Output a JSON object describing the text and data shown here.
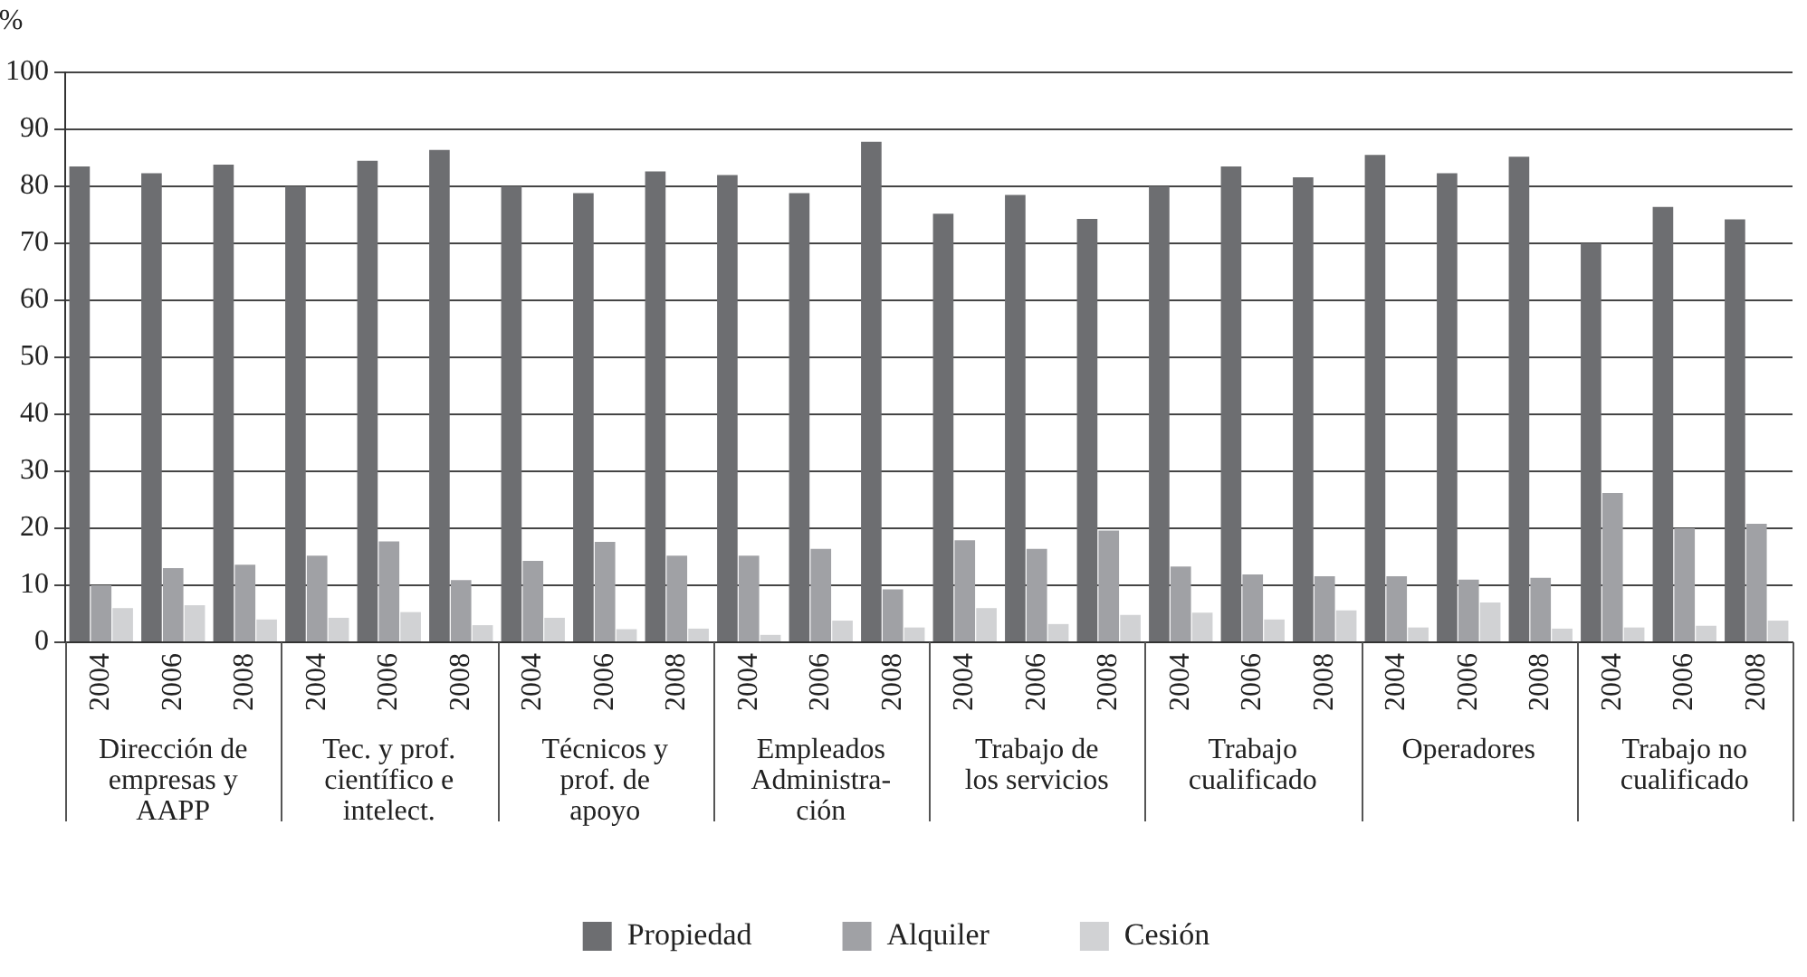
{
  "chart_data": {
    "type": "bar",
    "ylabel": "%",
    "categories": [
      "2004",
      "2006",
      "2008",
      "2004",
      "2006",
      "2008",
      "2004",
      "2006",
      "2008",
      "2004",
      "2006",
      "2008",
      "2004",
      "2006",
      "2008",
      "2004",
      "2006",
      "2008",
      "2004",
      "2006",
      "2008",
      "2004",
      "2006",
      "2008"
    ],
    "annotations": [
      "Dirección de\nempresas y\nAAPP",
      "Tec. y prof.\ncientífico e\nintelect.",
      "Técnicos y\nprof. de\napoyo",
      "Empleados\nAdministra-\nción",
      "Trabajo de\nlos servicios",
      "Trabajo\ncualificado",
      "Operadores",
      "Trabajo no\ncualificado"
    ],
    "series": [
      {
        "name": "Propiedad",
        "color": "#6d6e71",
        "values": [
          83.5,
          82.3,
          83.8,
          80,
          84.5,
          86.4,
          80,
          78.8,
          82.6,
          82,
          78.8,
          87.8,
          75.2,
          78.5,
          74.3,
          80,
          83.5,
          81.6,
          85.5,
          82.3,
          85.2,
          70,
          76.4,
          74.2
        ]
      },
      {
        "name": "Alquiler",
        "color": "#a0a1a5",
        "values": [
          10,
          13,
          13.6,
          15.2,
          17.7,
          10.9,
          14.3,
          17.6,
          15.2,
          15.2,
          16.4,
          9.3,
          17.9,
          16.4,
          19.6,
          13.3,
          11.9,
          11.6,
          11.6,
          11,
          11.3,
          26.2,
          20,
          20.8
        ]
      },
      {
        "name": "Cesión",
        "color": "#d1d2d4",
        "values": [
          6,
          6.5,
          4,
          4.3,
          5.3,
          3,
          4.3,
          2.3,
          2.4,
          1.3,
          3.8,
          2.6,
          6,
          3.2,
          4.8,
          5.2,
          4,
          5.6,
          2.6,
          7,
          2.4,
          2.6,
          2.9,
          3.8
        ]
      }
    ],
    "ylim": [
      0,
      100
    ],
    "yticks": [
      0,
      10,
      20,
      30,
      40,
      50,
      60,
      70,
      80,
      90,
      100
    ],
    "grid": "y",
    "legend": "bottom"
  }
}
